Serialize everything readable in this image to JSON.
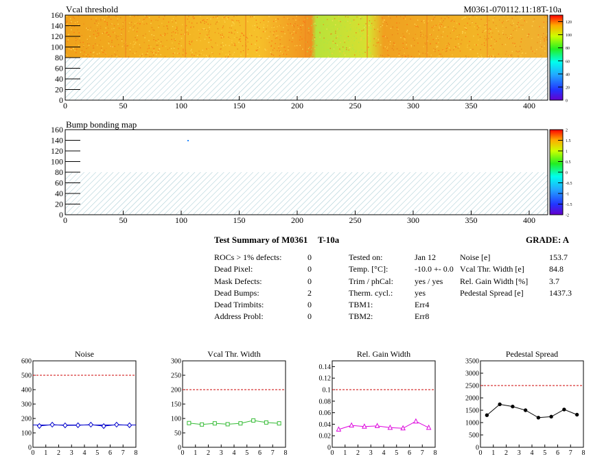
{
  "maps": [
    {
      "title": "Vcal threshold",
      "run_label": "M0361-070112.11:18T-10a",
      "x_ticks": [
        0,
        50,
        100,
        150,
        200,
        250,
        300,
        350,
        400
      ],
      "y_ticks": [
        0,
        20,
        40,
        60,
        80,
        100,
        120,
        140,
        160
      ],
      "xlim": [
        0,
        416
      ],
      "ylim": [
        0,
        160
      ],
      "color_ticks": [
        "0",
        "20",
        "40",
        "60",
        "80",
        "100",
        "120"
      ],
      "color_range": [
        0,
        130
      ]
    },
    {
      "title": "Bump bonding map",
      "x_ticks": [
        0,
        50,
        100,
        150,
        200,
        250,
        300,
        350,
        400
      ],
      "y_ticks": [
        0,
        20,
        40,
        60,
        80,
        100,
        120,
        140,
        160
      ],
      "xlim": [
        0,
        416
      ],
      "ylim": [
        0,
        160
      ],
      "color_ticks": [
        "-2",
        "-1.5",
        "-1",
        "-0.5",
        "0",
        "0.5",
        "1",
        "1.5",
        "2"
      ],
      "color_range": [
        -2,
        2
      ]
    }
  ],
  "summary": {
    "title": "Test Summary of M0361",
    "subtitle": "T-10a",
    "grade": "GRADE:  A",
    "defects": [
      {
        "label": "ROCs > 1% defects:",
        "value": "0"
      },
      {
        "label": "Dead Pixel:",
        "value": "0"
      },
      {
        "label": "Mask Defects:",
        "value": "0"
      },
      {
        "label": "Dead Bumps:",
        "value": "2"
      },
      {
        "label": "Dead Trimbits:",
        "value": "0"
      },
      {
        "label": "Address Probl:",
        "value": "0"
      }
    ],
    "conditions": [
      {
        "label": "Tested on:",
        "value": "Jan 12"
      },
      {
        "label": "Temp. [°C]:",
        "value": "-10.0 +- 0.0"
      },
      {
        "label": "Trim / phCal:",
        "value": "yes / yes"
      },
      {
        "label": "Therm. cycl.:",
        "value": "yes"
      },
      {
        "label": "TBM1:",
        "value": "Err4"
      },
      {
        "label": "TBM2:",
        "value": "Err8"
      }
    ],
    "results": [
      {
        "label": "Noise [e]",
        "value": "153.7"
      },
      {
        "label": "Vcal Thr. Width [e]",
        "value": "84.8"
      },
      {
        "label": "Rel. Gain Width [%]",
        "value": "3.7"
      },
      {
        "label": "Pedestal Spread [e]",
        "value": "1437.3"
      }
    ]
  },
  "chart_data": [
    {
      "type": "line",
      "title": "Noise",
      "color": "#0000cc",
      "marker": "diamond",
      "x": [
        0.5,
        1.5,
        2.5,
        3.5,
        4.5,
        5.5,
        6.5,
        7.5
      ],
      "values": [
        148,
        157,
        152,
        153,
        157,
        147,
        157,
        153
      ],
      "xlim": [
        0,
        8
      ],
      "ylim": [
        0,
        600
      ],
      "x_ticks": [
        0,
        1,
        2,
        3,
        4,
        5,
        6,
        7,
        8
      ],
      "y_ticks": [
        0,
        100,
        200,
        300,
        400,
        500,
        600
      ],
      "threshold": 500,
      "band": 155
    },
    {
      "type": "line",
      "title": "Vcal Thr. Width",
      "color": "#33bb33",
      "marker": "square",
      "x": [
        0.5,
        1.5,
        2.5,
        3.5,
        4.5,
        5.5,
        6.5,
        7.5
      ],
      "values": [
        84,
        79,
        83,
        80,
        83,
        93,
        86,
        83
      ],
      "xlim": [
        0,
        8
      ],
      "ylim": [
        0,
        300
      ],
      "x_ticks": [
        0,
        1,
        2,
        3,
        4,
        5,
        6,
        7,
        8
      ],
      "y_ticks": [
        0,
        50,
        100,
        150,
        200,
        250,
        300
      ],
      "threshold": 200
    },
    {
      "type": "line",
      "title": "Rel. Gain Width",
      "color": "#dd00dd",
      "marker": "triangle",
      "x": [
        0.5,
        1.5,
        2.5,
        3.5,
        4.5,
        5.5,
        6.5,
        7.5
      ],
      "values": [
        0.031,
        0.038,
        0.036,
        0.037,
        0.034,
        0.033,
        0.045,
        0.034
      ],
      "xlim": [
        0,
        8
      ],
      "ylim": [
        0,
        0.15
      ],
      "x_ticks": [
        0,
        1,
        2,
        3,
        4,
        5,
        6,
        7,
        8
      ],
      "y_ticks": [
        0,
        0.02,
        0.04,
        0.06,
        0.08,
        0.1,
        0.12,
        0.14
      ],
      "threshold": 0.1
    },
    {
      "type": "line",
      "title": "Pedestal Spread",
      "color": "#000000",
      "marker": "circle",
      "x": [
        0.5,
        1.5,
        2.5,
        3.5,
        4.5,
        5.5,
        6.5,
        7.5
      ],
      "values": [
        1300,
        1740,
        1650,
        1500,
        1200,
        1240,
        1530,
        1320
      ],
      "xlim": [
        0,
        8
      ],
      "ylim": [
        0,
        3500
      ],
      "x_ticks": [
        0,
        1,
        2,
        3,
        4,
        5,
        6,
        7,
        8
      ],
      "y_ticks": [
        0,
        500,
        1000,
        1500,
        2000,
        2500,
        3000,
        3500
      ],
      "threshold": 2500
    }
  ]
}
